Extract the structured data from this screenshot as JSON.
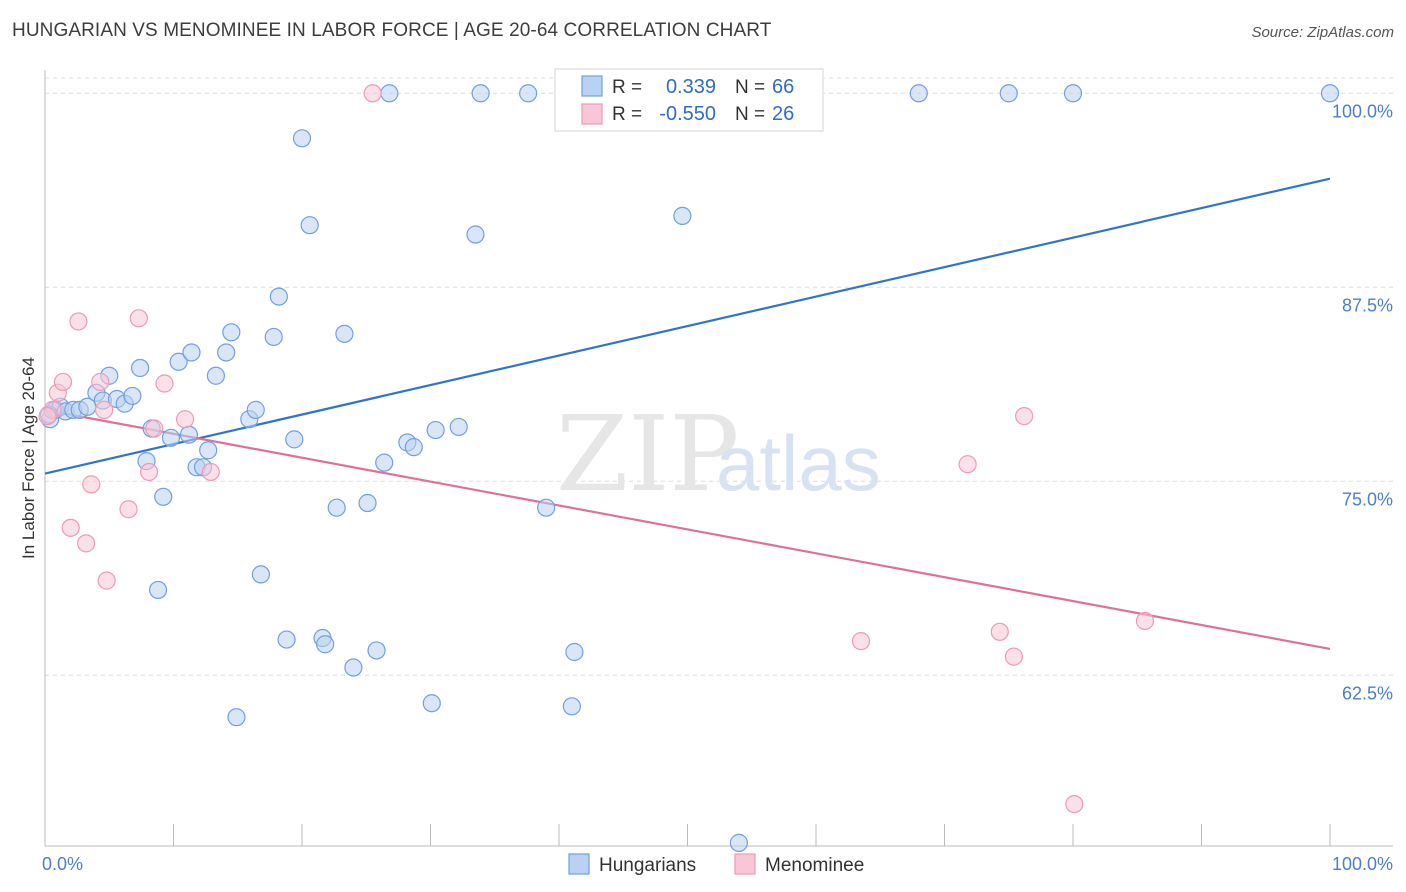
{
  "header": {
    "title": "HUNGARIAN VS MENOMINEE IN LABOR FORCE | AGE 20-64 CORRELATION CHART",
    "source": "Source: ZipAtlas.com"
  },
  "watermark": {
    "part1": "ZIP",
    "part2": "atlas"
  },
  "chart_data": {
    "type": "scatter",
    "title": "HUNGARIAN VS MENOMINEE IN LABOR FORCE | AGE 20-64 CORRELATION CHART",
    "xlabel": "",
    "ylabel": "In Labor Force | Age 20-64",
    "xlim": [
      0,
      100
    ],
    "ylim": [
      51.5,
      101.5
    ],
    "x_tick_labels": [
      {
        "value": 0,
        "label": "0.0%"
      },
      {
        "value": 100,
        "label": "100.0%"
      }
    ],
    "y_ticks": [
      {
        "value": 100,
        "label": "100.0%"
      },
      {
        "value": 87.5,
        "label": "87.5%"
      },
      {
        "value": 75,
        "label": "75.0%"
      },
      {
        "value": 62.5,
        "label": "62.5%"
      }
    ],
    "grid": "horizontal dashed",
    "legend": {
      "placement": "top-center",
      "rows": [
        {
          "r_label": "R =",
          "r_value": "0.339",
          "n_label": "N =",
          "n_value": "66"
        },
        {
          "r_label": "R =",
          "r_value": "-0.550",
          "n_label": "N =",
          "n_value": "26"
        }
      ]
    },
    "series": [
      {
        "name": "Hungarians",
        "color": "#6fa0e0",
        "fill": "#b9d1f2",
        "trend_color": "#2f74d0",
        "trend": {
          "x": [
            0,
            100
          ],
          "y": [
            75.5,
            94.5
          ]
        },
        "points": [
          [
            0.4,
            79.0
          ],
          [
            0.8,
            79.6
          ],
          [
            1.2,
            79.8
          ],
          [
            1.6,
            79.5
          ],
          [
            2.2,
            79.6
          ],
          [
            2.7,
            79.6
          ],
          [
            3.3,
            79.8
          ],
          [
            4.0,
            80.7
          ],
          [
            4.5,
            80.2
          ],
          [
            5.0,
            81.8
          ],
          [
            5.6,
            80.3
          ],
          [
            6.2,
            80.0
          ],
          [
            6.8,
            80.5
          ],
          [
            7.4,
            82.3
          ],
          [
            7.9,
            76.3
          ],
          [
            8.3,
            78.4
          ],
          [
            8.8,
            68.0
          ],
          [
            9.2,
            74.0
          ],
          [
            9.8,
            77.8
          ],
          [
            10.4,
            82.7
          ],
          [
            11.2,
            78.0
          ],
          [
            11.4,
            83.3
          ],
          [
            11.8,
            75.9
          ],
          [
            12.3,
            75.9
          ],
          [
            12.7,
            77.0
          ],
          [
            13.3,
            81.8
          ],
          [
            14.1,
            83.3
          ],
          [
            14.5,
            84.6
          ],
          [
            14.9,
            59.8
          ],
          [
            15.9,
            79.0
          ],
          [
            16.4,
            79.6
          ],
          [
            16.8,
            69.0
          ],
          [
            17.8,
            84.3
          ],
          [
            18.2,
            86.9
          ],
          [
            18.8,
            64.8
          ],
          [
            19.4,
            77.7
          ],
          [
            20.0,
            97.1
          ],
          [
            20.6,
            91.5
          ],
          [
            21.6,
            64.9
          ],
          [
            21.8,
            64.5
          ],
          [
            22.7,
            73.3
          ],
          [
            23.3,
            84.5
          ],
          [
            24.0,
            63.0
          ],
          [
            25.1,
            73.6
          ],
          [
            25.8,
            64.1
          ],
          [
            26.4,
            76.2
          ],
          [
            26.8,
            100.0
          ],
          [
            28.2,
            77.5
          ],
          [
            28.7,
            77.2
          ],
          [
            30.1,
            60.7
          ],
          [
            30.4,
            78.3
          ],
          [
            32.2,
            78.5
          ],
          [
            33.5,
            90.9
          ],
          [
            33.9,
            100.0
          ],
          [
            37.6,
            100.0
          ],
          [
            39.0,
            73.3
          ],
          [
            41.0,
            60.5
          ],
          [
            41.2,
            64.0
          ],
          [
            49.6,
            92.1
          ],
          [
            54.0,
            51.7
          ],
          [
            55.9,
            100.0
          ],
          [
            68.0,
            100.0
          ],
          [
            75.0,
            100.0
          ],
          [
            80.0,
            100.0
          ],
          [
            100.0,
            100.0
          ],
          [
            0.3,
            79.3
          ]
        ]
      },
      {
        "name": "Menominee",
        "color": "#ee9ab6",
        "fill": "#f8c6d6",
        "trend_color": "#e0709a",
        "trend": {
          "x": [
            0,
            100
          ],
          "y": [
            79.6,
            64.2
          ]
        },
        "points": [
          [
            0.6,
            79.6
          ],
          [
            1.0,
            80.7
          ],
          [
            1.4,
            81.4
          ],
          [
            2.0,
            72.0
          ],
          [
            2.6,
            85.3
          ],
          [
            3.2,
            71.0
          ],
          [
            3.6,
            74.8
          ],
          [
            4.3,
            81.4
          ],
          [
            4.6,
            79.6
          ],
          [
            4.8,
            68.6
          ],
          [
            6.5,
            73.2
          ],
          [
            7.3,
            85.5
          ],
          [
            8.1,
            75.6
          ],
          [
            8.5,
            78.4
          ],
          [
            9.3,
            81.3
          ],
          [
            10.9,
            79.0
          ],
          [
            12.9,
            75.6
          ],
          [
            25.5,
            100.0
          ],
          [
            63.5,
            64.7
          ],
          [
            71.8,
            76.1
          ],
          [
            74.3,
            65.3
          ],
          [
            75.4,
            63.7
          ],
          [
            76.2,
            79.2
          ],
          [
            80.1,
            54.2
          ],
          [
            85.6,
            66.0
          ],
          [
            0.2,
            79.2
          ]
        ]
      }
    ]
  }
}
